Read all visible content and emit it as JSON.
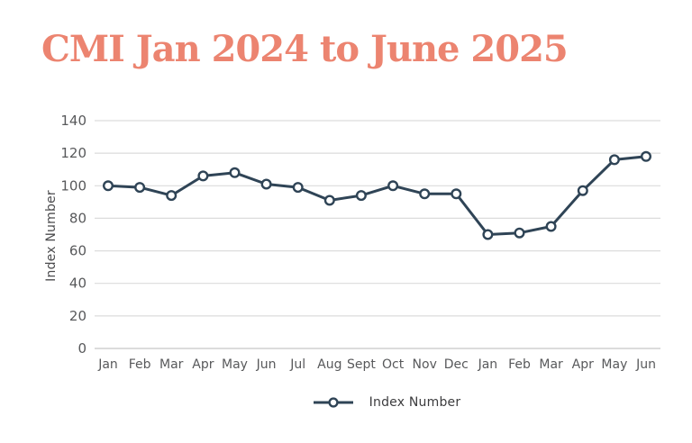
{
  "title": {
    "text": "CMI Jan 2024 to June 2025",
    "color": "#EC8470"
  },
  "chart_data": {
    "type": "line",
    "title": "CMI Jan 2024 to June 2025",
    "categories": [
      "Jan",
      "Feb",
      "Mar",
      "Apr",
      "May",
      "Jun",
      "Jul",
      "Aug",
      "Sept",
      "Oct",
      "Nov",
      "Dec",
      "Jan",
      "Feb",
      "Mar",
      "Apr",
      "May",
      "Jun"
    ],
    "series": [
      {
        "name": "Index Number",
        "values": [
          100,
          99,
          94,
          106,
          108,
          101,
          99,
          91,
          94,
          100,
          95,
          95,
          70,
          71,
          75,
          97,
          116,
          118
        ]
      }
    ],
    "xlabel": "",
    "ylabel": "Index Number",
    "ylim": [
      0,
      140
    ],
    "yticks": [
      0,
      20,
      40,
      60,
      80,
      100,
      120,
      140
    ],
    "grid": true,
    "legend_position": "bottom",
    "colors": {
      "line": "#2F4456",
      "marker_fill": "#FFFFFF",
      "grid": "#DCDCDC",
      "axis_line": "#C6C6C6",
      "tick_text": "#58595B",
      "legend_text": "#3C3C3E"
    }
  }
}
